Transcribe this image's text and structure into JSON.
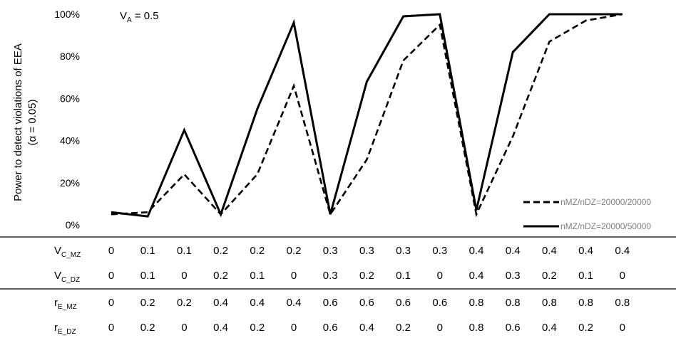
{
  "chart_data": {
    "type": "line",
    "title": "",
    "annotation": {
      "symbol": "V",
      "subscript": "A",
      "value_text": " = 0.5"
    },
    "ylabel_line1": "Power to detect violations of EEA",
    "ylabel_line2": "(α = 0.05)",
    "ylim": [
      0,
      100
    ],
    "y_ticks": [
      0,
      20,
      40,
      60,
      80,
      100
    ],
    "y_tick_labels": [
      "0%",
      "20%",
      "40%",
      "60%",
      "80%",
      "100%"
    ],
    "grid": false,
    "legend_position": "bottom-right",
    "table_rows": [
      {
        "symbol": "V",
        "subscript": "C_MZ",
        "values": [
          "0",
          "0.1",
          "0.1",
          "0.2",
          "0.2",
          "0.2",
          "0.3",
          "0.3",
          "0.3",
          "0.3",
          "0.4",
          "0.4",
          "0.4",
          "0.4",
          "0.4"
        ]
      },
      {
        "symbol": "V",
        "subscript": "C_DZ",
        "values": [
          "0",
          "0.1",
          "0",
          "0.2",
          "0.1",
          "0",
          "0.3",
          "0.2",
          "0.1",
          "0",
          "0.4",
          "0.3",
          "0.2",
          "0.1",
          "0"
        ]
      },
      {
        "symbol": "r",
        "subscript": "E_MZ",
        "values": [
          "0",
          "0.2",
          "0.2",
          "0.4",
          "0.4",
          "0.4",
          "0.6",
          "0.6",
          "0.6",
          "0.6",
          "0.8",
          "0.8",
          "0.8",
          "0.8",
          "0.8"
        ]
      },
      {
        "symbol": "r",
        "subscript": "E_DZ",
        "values": [
          "0",
          "0.2",
          "0",
          "0.4",
          "0.2",
          "0",
          "0.6",
          "0.4",
          "0.2",
          "0",
          "0.8",
          "0.6",
          "0.4",
          "0.2",
          "0"
        ]
      }
    ],
    "series": [
      {
        "name": "nMZ/nDZ=20000/20000",
        "style": "dashed",
        "color": "#000000",
        "values": [
          5,
          6,
          24,
          5,
          24,
          66,
          5,
          31,
          78,
          95,
          5,
          42,
          87,
          97,
          100
        ]
      },
      {
        "name": "nMZ/nDZ=20000/50000",
        "style": "solid",
        "color": "#000000",
        "values": [
          6,
          4,
          45,
          5,
          55,
          96,
          5,
          68,
          99,
          100,
          7,
          82,
          100,
          100,
          100
        ]
      }
    ]
  }
}
